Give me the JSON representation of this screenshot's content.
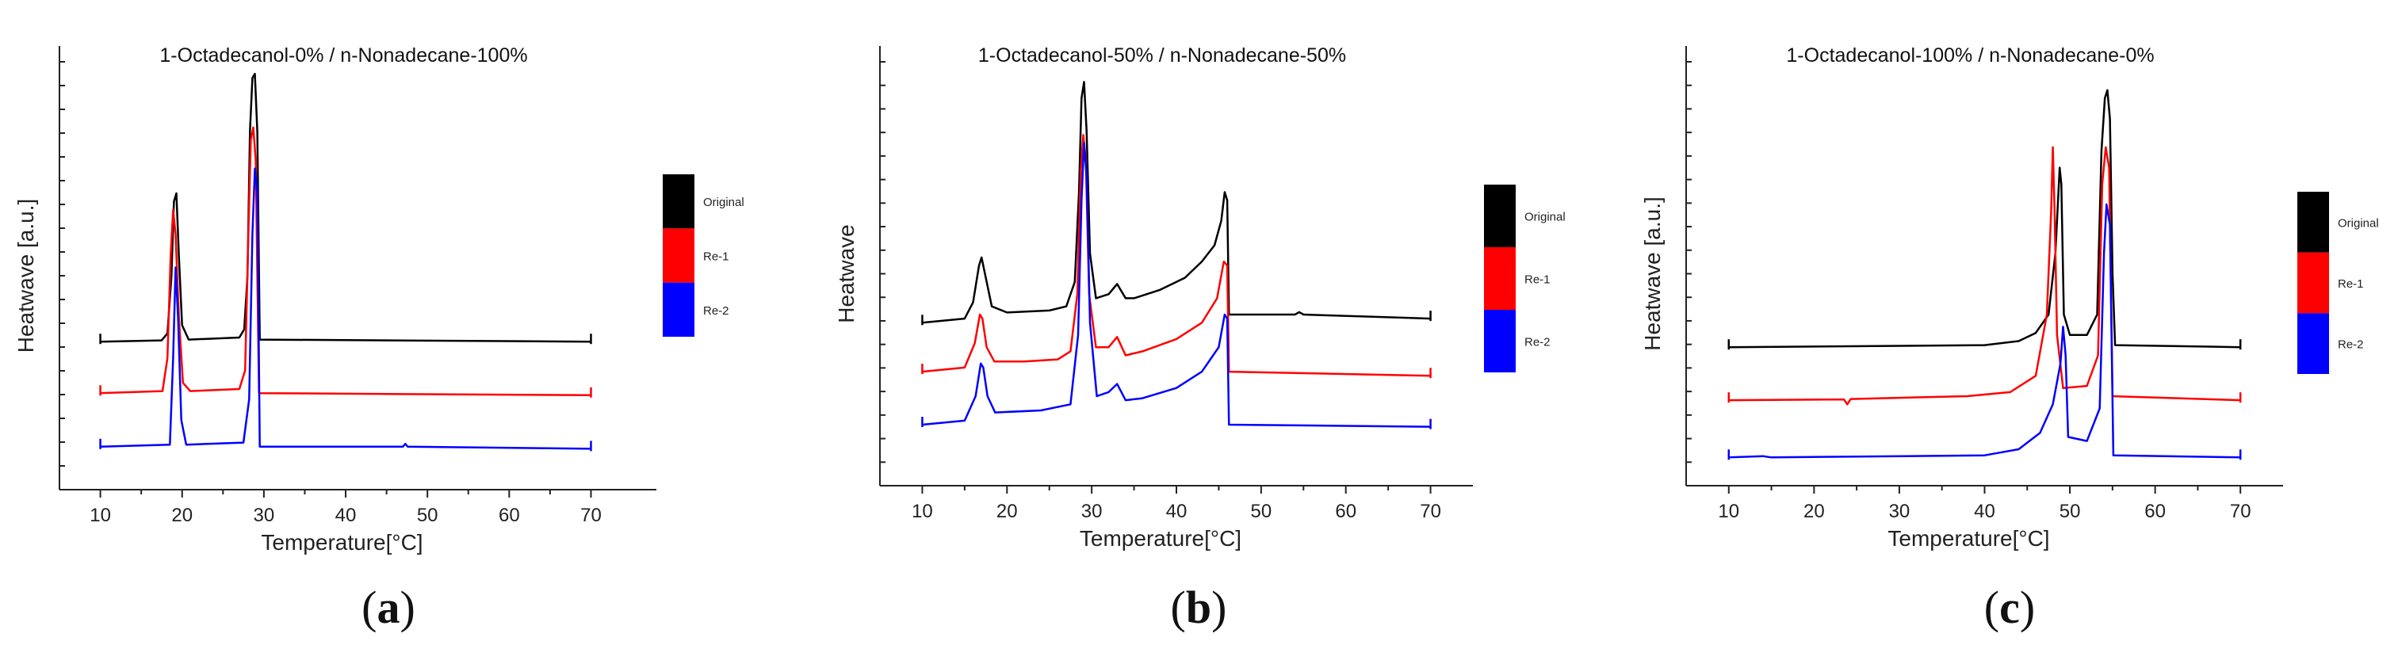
{
  "colors": {
    "original": "#000000",
    "re1": "#ff0000",
    "re2": "#0000ff"
  },
  "chart_data": [
    {
      "type": "line",
      "panel_label": "(a)",
      "panel_letter": "a",
      "title": "1-Octadecanol-0% / n-Nonadecane-100%",
      "xlabel": "Temperature[°C]",
      "ylabel": "Heatwave [a.u.]",
      "xlim": [
        5,
        78
      ],
      "ylim": [
        0,
        100
      ],
      "xticks": [
        10,
        20,
        30,
        40,
        50,
        60,
        70
      ],
      "legend": [
        "Original",
        "Re-1",
        "Re-2"
      ],
      "legend_position": "right",
      "series": [
        {
          "name": "Original",
          "baseline": 34,
          "start": 10,
          "end": 70,
          "points": [
            [
              10,
              34
            ],
            [
              17.5,
              34.3
            ],
            [
              18.2,
              36
            ],
            [
              18.7,
              50
            ],
            [
              19.0,
              68
            ],
            [
              19.3,
              70
            ],
            [
              19.6,
              55
            ],
            [
              20.0,
              38
            ],
            [
              20.8,
              34.5
            ],
            [
              27,
              35
            ],
            [
              27.6,
              37
            ],
            [
              28.0,
              50
            ],
            [
              28.3,
              85
            ],
            [
              28.6,
              98
            ],
            [
              28.9,
              99
            ],
            [
              29.2,
              85
            ],
            [
              29.5,
              34.5
            ],
            [
              70,
              34
            ]
          ]
        },
        {
          "name": "Re-1",
          "baseline": 21,
          "start": 10,
          "end": 70,
          "points": [
            [
              10,
              21.5
            ],
            [
              17.6,
              22
            ],
            [
              18.2,
              30
            ],
            [
              18.6,
              55
            ],
            [
              18.9,
              66
            ],
            [
              19.2,
              60
            ],
            [
              19.6,
              40
            ],
            [
              20.1,
              24
            ],
            [
              21,
              22
            ],
            [
              27,
              22.5
            ],
            [
              27.7,
              27
            ],
            [
              28.1,
              60
            ],
            [
              28.4,
              83
            ],
            [
              28.7,
              86
            ],
            [
              29.0,
              78
            ],
            [
              29.4,
              21.5
            ],
            [
              70,
              21
            ]
          ]
        },
        {
          "name": "Re-2",
          "baseline": 8,
          "start": 10,
          "end": 70,
          "points": [
            [
              10,
              8.5
            ],
            [
              18.5,
              9
            ],
            [
              18.9,
              30
            ],
            [
              19.2,
              52
            ],
            [
              19.5,
              40
            ],
            [
              19.9,
              15
            ],
            [
              20.5,
              9
            ],
            [
              27.5,
              9.5
            ],
            [
              28.2,
              20
            ],
            [
              28.6,
              60
            ],
            [
              28.9,
              76
            ],
            [
              29.2,
              70
            ],
            [
              29.5,
              8.5
            ],
            [
              47,
              8.5
            ],
            [
              47.3,
              9.2
            ],
            [
              47.6,
              8.5
            ],
            [
              70,
              8
            ]
          ]
        }
      ]
    },
    {
      "type": "line",
      "panel_label": "(b)",
      "panel_letter": "b",
      "title": "1-Octadecanol-50% / n-Nonadecane-50%",
      "xlabel": "Temperature[°C]",
      "ylabel": "Heatwave",
      "xlim": [
        5,
        75
      ],
      "ylim": [
        0,
        100
      ],
      "xticks": [
        10,
        20,
        30,
        40,
        50,
        60,
        70
      ],
      "legend": [
        "Original",
        "Re-1",
        "Re-2"
      ],
      "legend_position": "right",
      "series": [
        {
          "name": "Original",
          "baseline": 38,
          "start": 10,
          "end": 70,
          "points": [
            [
              10,
              38
            ],
            [
              15,
              39
            ],
            [
              16,
              43
            ],
            [
              16.7,
              52
            ],
            [
              17.0,
              54
            ],
            [
              17.4,
              50
            ],
            [
              18.2,
              42
            ],
            [
              20,
              40.5
            ],
            [
              25,
              41
            ],
            [
              27,
              42
            ],
            [
              28,
              48
            ],
            [
              28.5,
              70
            ],
            [
              28.8,
              93
            ],
            [
              29.1,
              97
            ],
            [
              29.4,
              85
            ],
            [
              29.8,
              55
            ],
            [
              30.5,
              44
            ],
            [
              32,
              45
            ],
            [
              33,
              47.5
            ],
            [
              34,
              44
            ],
            [
              35,
              44
            ],
            [
              38,
              46
            ],
            [
              41,
              49
            ],
            [
              43,
              53
            ],
            [
              44.5,
              57
            ],
            [
              45.3,
              63
            ],
            [
              45.7,
              70
            ],
            [
              46.0,
              68
            ],
            [
              46.2,
              40
            ],
            [
              54,
              40
            ],
            [
              54.5,
              40.6
            ],
            [
              55,
              40
            ],
            [
              70,
              39
            ]
          ]
        },
        {
          "name": "Re-1",
          "baseline": 26,
          "start": 10,
          "end": 70,
          "points": [
            [
              10,
              26
            ],
            [
              15,
              27
            ],
            [
              16.2,
              33
            ],
            [
              16.8,
              40
            ],
            [
              17.1,
              39
            ],
            [
              17.6,
              32
            ],
            [
              18.5,
              28.5
            ],
            [
              22,
              28.5
            ],
            [
              26,
              29
            ],
            [
              27.5,
              31
            ],
            [
              28.3,
              45
            ],
            [
              28.7,
              75
            ],
            [
              29.0,
              84
            ],
            [
              29.3,
              78
            ],
            [
              29.7,
              45
            ],
            [
              30.5,
              32
            ],
            [
              32,
              32
            ],
            [
              33,
              34.5
            ],
            [
              34,
              30
            ],
            [
              36,
              31
            ],
            [
              40,
              34
            ],
            [
              43,
              38
            ],
            [
              44.8,
              44
            ],
            [
              45.6,
              53
            ],
            [
              46.0,
              52
            ],
            [
              46.2,
              26
            ],
            [
              70,
              25
            ]
          ]
        },
        {
          "name": "Re-2",
          "baseline": 13,
          "start": 10,
          "end": 70,
          "points": [
            [
              10,
              13
            ],
            [
              15,
              14
            ],
            [
              16.3,
              20
            ],
            [
              16.9,
              28
            ],
            [
              17.2,
              27
            ],
            [
              17.7,
              20
            ],
            [
              18.6,
              16
            ],
            [
              24,
              16.5
            ],
            [
              27.5,
              18
            ],
            [
              28.4,
              35
            ],
            [
              28.8,
              68
            ],
            [
              29.1,
              82
            ],
            [
              29.4,
              74
            ],
            [
              29.8,
              38
            ],
            [
              30.6,
              20
            ],
            [
              32,
              21
            ],
            [
              33,
              23
            ],
            [
              34,
              19
            ],
            [
              36,
              19.5
            ],
            [
              40,
              22
            ],
            [
              43,
              26
            ],
            [
              45,
              32
            ],
            [
              45.7,
              40
            ],
            [
              46.0,
              39
            ],
            [
              46.2,
              13
            ],
            [
              70,
              12.5
            ]
          ]
        }
      ]
    },
    {
      "type": "line",
      "panel_label": "(c)",
      "panel_letter": "c",
      "title": "1-Octadecanol-100% / n-Nonadecane-0%",
      "xlabel": "Temperature[°C]",
      "ylabel": "Heatwave [a.u.]",
      "xlim": [
        5,
        75
      ],
      "ylim": [
        0,
        100
      ],
      "xticks": [
        10,
        20,
        30,
        40,
        50,
        60,
        70
      ],
      "legend": [
        "Original",
        "Re-1",
        "Re-2"
      ],
      "legend_position": "right",
      "series": [
        {
          "name": "Original",
          "baseline": 32,
          "start": 10,
          "end": 70,
          "points": [
            [
              10,
              32
            ],
            [
              40,
              32.5
            ],
            [
              44,
              33.5
            ],
            [
              46,
              35.5
            ],
            [
              47.5,
              40
            ],
            [
              48.3,
              55
            ],
            [
              48.8,
              76
            ],
            [
              49.0,
              72
            ],
            [
              49.3,
              40
            ],
            [
              50,
              35
            ],
            [
              52,
              35
            ],
            [
              53.2,
              40
            ],
            [
              53.7,
              80
            ],
            [
              54.1,
              93
            ],
            [
              54.4,
              95
            ],
            [
              54.7,
              88
            ],
            [
              55.0,
              50
            ],
            [
              55.3,
              32.5
            ],
            [
              70,
              32
            ]
          ]
        },
        {
          "name": "Re-1",
          "baseline": 19,
          "start": 10,
          "end": 70,
          "points": [
            [
              10,
              19
            ],
            [
              23.5,
              19.2
            ],
            [
              23.9,
              18
            ],
            [
              24.3,
              19.3
            ],
            [
              38,
              20
            ],
            [
              43,
              21
            ],
            [
              46,
              25
            ],
            [
              47.3,
              40
            ],
            [
              47.8,
              65
            ],
            [
              48.0,
              81
            ],
            [
              48.2,
              66
            ],
            [
              48.5,
              35
            ],
            [
              49.2,
              22
            ],
            [
              52,
              22.5
            ],
            [
              53.3,
              30
            ],
            [
              53.8,
              72
            ],
            [
              54.2,
              81
            ],
            [
              54.6,
              76
            ],
            [
              55.0,
              20
            ],
            [
              70,
              19
            ]
          ]
        },
        {
          "name": "Re-2",
          "baseline": 5,
          "start": 10,
          "end": 70,
          "points": [
            [
              10,
              5
            ],
            [
              14,
              5.3
            ],
            [
              15,
              5
            ],
            [
              40,
              5.5
            ],
            [
              44,
              7
            ],
            [
              46.5,
              11
            ],
            [
              48,
              18
            ],
            [
              48.9,
              28
            ],
            [
              49.2,
              37
            ],
            [
              49.5,
              30
            ],
            [
              49.8,
              10
            ],
            [
              52,
              9
            ],
            [
              53.5,
              17
            ],
            [
              54.0,
              55
            ],
            [
              54.3,
              67
            ],
            [
              54.7,
              62
            ],
            [
              55.1,
              5.5
            ],
            [
              70,
              5
            ]
          ]
        }
      ]
    }
  ]
}
